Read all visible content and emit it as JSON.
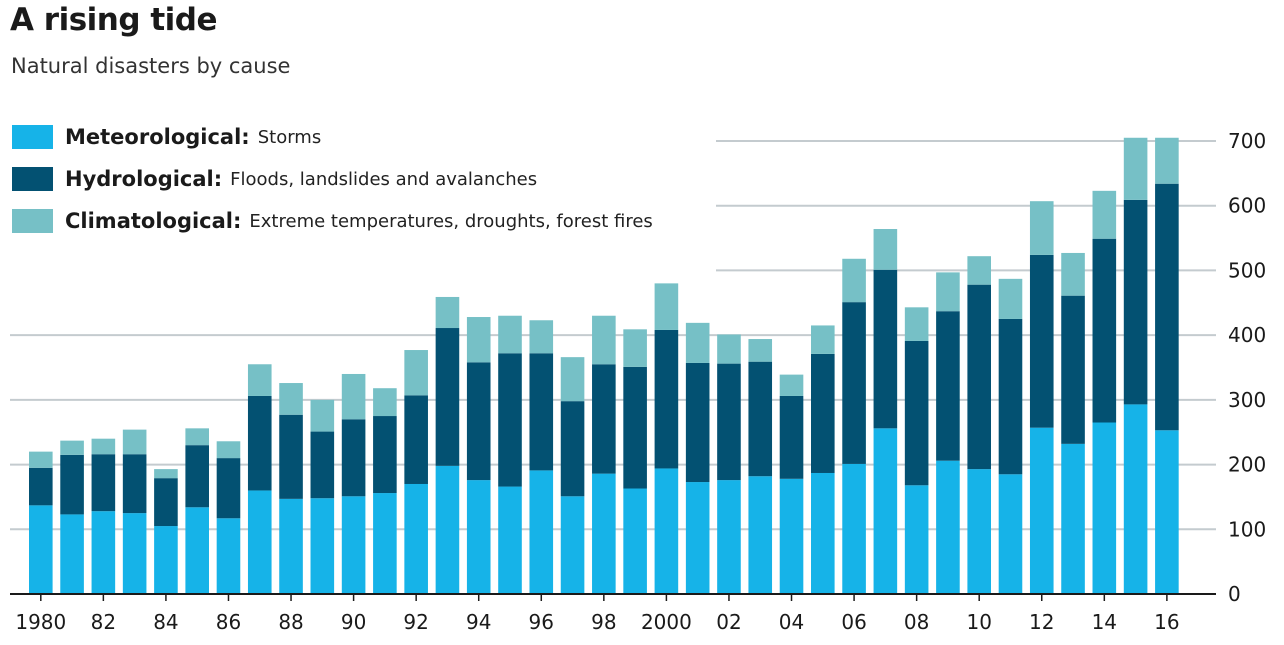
{
  "header": {
    "title": "A rising tide",
    "subtitle": "Natural disasters by cause"
  },
  "legend": [
    {
      "name": "Meteorological:",
      "desc": "Storms",
      "color": "#16b3e8"
    },
    {
      "name": "Hydrological:",
      "desc": "Floods, landslides and avalanches",
      "color": "#035172"
    },
    {
      "name": "Climatological:",
      "desc": "Extreme temperatures, droughts, forest fires",
      "color": "#76c0c6"
    }
  ],
  "chart_data": {
    "type": "bar",
    "stacked": true,
    "years": [
      1980,
      1981,
      1982,
      1983,
      1984,
      1985,
      1986,
      1987,
      1988,
      1989,
      1990,
      1991,
      1992,
      1993,
      1994,
      1995,
      1996,
      1997,
      1998,
      1999,
      2000,
      2001,
      2002,
      2003,
      2004,
      2005,
      2006,
      2007,
      2008,
      2009,
      2010,
      2011,
      2012,
      2013,
      2014,
      2015,
      2016
    ],
    "x_tick_labels": [
      "1980",
      "",
      "82",
      "",
      "84",
      "",
      "86",
      "",
      "88",
      "",
      "90",
      "",
      "92",
      "",
      "94",
      "",
      "96",
      "",
      "98",
      "",
      "2000",
      "",
      "02",
      "",
      "04",
      "",
      "06",
      "",
      "08",
      "",
      "10",
      "",
      "12",
      "",
      "14",
      "",
      "16"
    ],
    "series": [
      {
        "name": "Meteorological",
        "color": "#16b3e8",
        "values": [
          137,
          123,
          128,
          125,
          105,
          134,
          117,
          160,
          147,
          148,
          151,
          156,
          170,
          198,
          176,
          166,
          191,
          151,
          186,
          163,
          194,
          173,
          176,
          182,
          178,
          187,
          201,
          256,
          168,
          206,
          193,
          185,
          257,
          232,
          265,
          293,
          253
        ]
      },
      {
        "name": "Hydrological",
        "color": "#035172",
        "values": [
          58,
          92,
          88,
          91,
          74,
          96,
          93,
          146,
          130,
          103,
          119,
          119,
          137,
          213,
          182,
          206,
          181,
          147,
          169,
          188,
          214,
          184,
          180,
          177,
          128,
          184,
          250,
          245,
          223,
          231,
          285,
          240,
          267,
          229,
          284,
          316,
          381
        ]
      },
      {
        "name": "Climatological",
        "color": "#76c0c6",
        "values": [
          25,
          22,
          24,
          38,
          14,
          26,
          26,
          49,
          49,
          49,
          70,
          43,
          70,
          48,
          70,
          58,
          51,
          68,
          75,
          58,
          72,
          62,
          45,
          35,
          33,
          44,
          67,
          63,
          52,
          60,
          44,
          62,
          83,
          66,
          74,
          96,
          71
        ]
      }
    ],
    "y_ticks": [
      0,
      100,
      200,
      300,
      400,
      500,
      600,
      700
    ],
    "ylim": [
      0,
      700
    ],
    "grid": true
  }
}
